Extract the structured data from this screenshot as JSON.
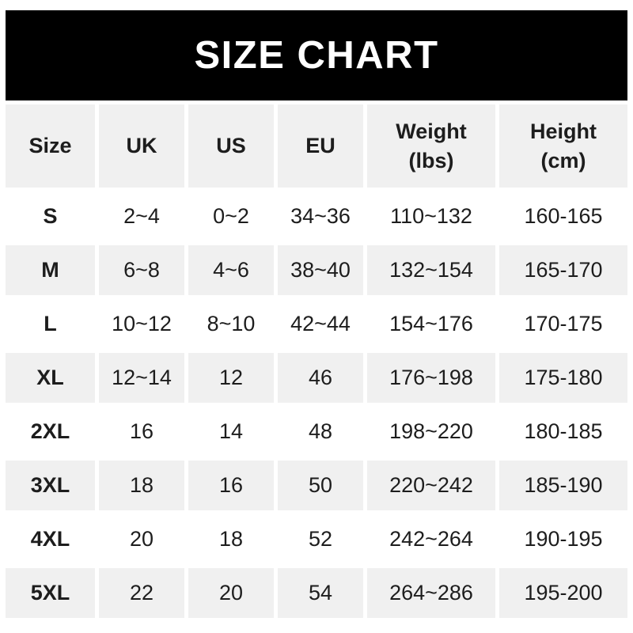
{
  "banner": {
    "title": "SIZE CHART"
  },
  "colors": {
    "banner_bg": "#000000",
    "banner_text": "#ffffff",
    "row_shade": "#f0f0f0",
    "row_plain": "#ffffff",
    "text": "#1d1d1d"
  },
  "chart_data": {
    "type": "table",
    "title": "SIZE CHART",
    "columns": [
      "Size",
      "UK",
      "US",
      "EU",
      "Weight\n(lbs)",
      "Height\n(cm)"
    ],
    "rows": [
      {
        "size": "S",
        "uk": "2~4",
        "us": "0~2",
        "eu": "34~36",
        "weight": "110~132",
        "height": "160-165"
      },
      {
        "size": "M",
        "uk": "6~8",
        "us": "4~6",
        "eu": "38~40",
        "weight": "132~154",
        "height": "165-170"
      },
      {
        "size": "L",
        "uk": "10~12",
        "us": "8~10",
        "eu": "42~44",
        "weight": "154~176",
        "height": "170-175"
      },
      {
        "size": "XL",
        "uk": "12~14",
        "us": "12",
        "eu": "46",
        "weight": "176~198",
        "height": "175-180"
      },
      {
        "size": "2XL",
        "uk": "16",
        "us": "14",
        "eu": "48",
        "weight": "198~220",
        "height": "180-185"
      },
      {
        "size": "3XL",
        "uk": "18",
        "us": "16",
        "eu": "50",
        "weight": "220~242",
        "height": "185-190"
      },
      {
        "size": "4XL",
        "uk": "20",
        "us": "18",
        "eu": "52",
        "weight": "242~264",
        "height": "190-195"
      },
      {
        "size": "5XL",
        "uk": "22",
        "us": "20",
        "eu": "54",
        "weight": "264~286",
        "height": "195-200"
      }
    ]
  }
}
